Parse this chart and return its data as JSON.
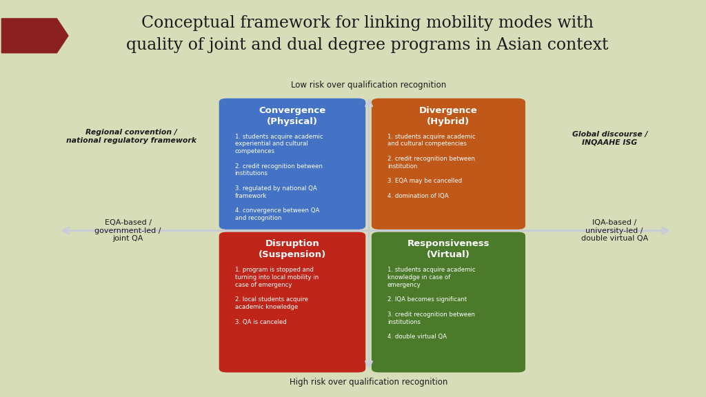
{
  "title_line1": "Conceptual framework for linking mobility modes with",
  "title_line2": "quality of joint and dual degree programs in Asian context",
  "title_fontsize": 17,
  "slide_bg": "#d6ddb8",
  "white_panel_bg": "#ffffff",
  "arrow_color": "#c8ccd8",
  "top_label": "Low risk over qualification recognition",
  "bottom_label": "High risk over qualification recognition",
  "left_label": "EQA-based /\ngovernment-led /\njoint QA",
  "right_label": "IQA-based /\nuniversity-led /\ndouble virtual QA",
  "top_left_italic": "Regional convention /\nnational regulatory framework",
  "top_right_italic": "Global discourse /\nINQAAHE ISG",
  "ribbon_color": "#8b2020",
  "boxes": [
    {
      "title": "Convergence\n(Physical)",
      "color": "#4472c4",
      "position": "top_left",
      "body_lines": [
        "1. students acquire academic",
        "experiential and cultural",
        "competences",
        "",
        "2. credit recognition between",
        "institutions",
        "",
        "3. regulated by national QA",
        "framework",
        "",
        "4. convergence between QA",
        "and recognition"
      ]
    },
    {
      "title": "Divergence\n(Hybrid)",
      "color": "#c0581a",
      "position": "top_right",
      "body_lines": [
        "1. students acquire academic",
        "and cultural competencies",
        "",
        "2. credit recognition between",
        "institution",
        "",
        "3. EQA may be cancelled",
        "",
        "4. domination of IQA"
      ]
    },
    {
      "title": "Disruption\n(Suspension)",
      "color": "#c0251a",
      "position": "bottom_left",
      "body_lines": [
        "1. program is stopped and",
        "turning into local mobility in",
        "case of emergency",
        "",
        "2. local students acquire",
        "academic knowledge",
        "",
        "3. QA is canceled"
      ]
    },
    {
      "title": "Responsiveness\n(Virtual)",
      "color": "#4a7a2a",
      "position": "bottom_right",
      "body_lines": [
        "1. students acquire academic",
        "knowledge in case of",
        "emergency",
        "",
        "2. IQA becomes significant",
        "",
        "3. credit recognition between",
        "institutions",
        "",
        "4. double virtual QA"
      ]
    }
  ]
}
